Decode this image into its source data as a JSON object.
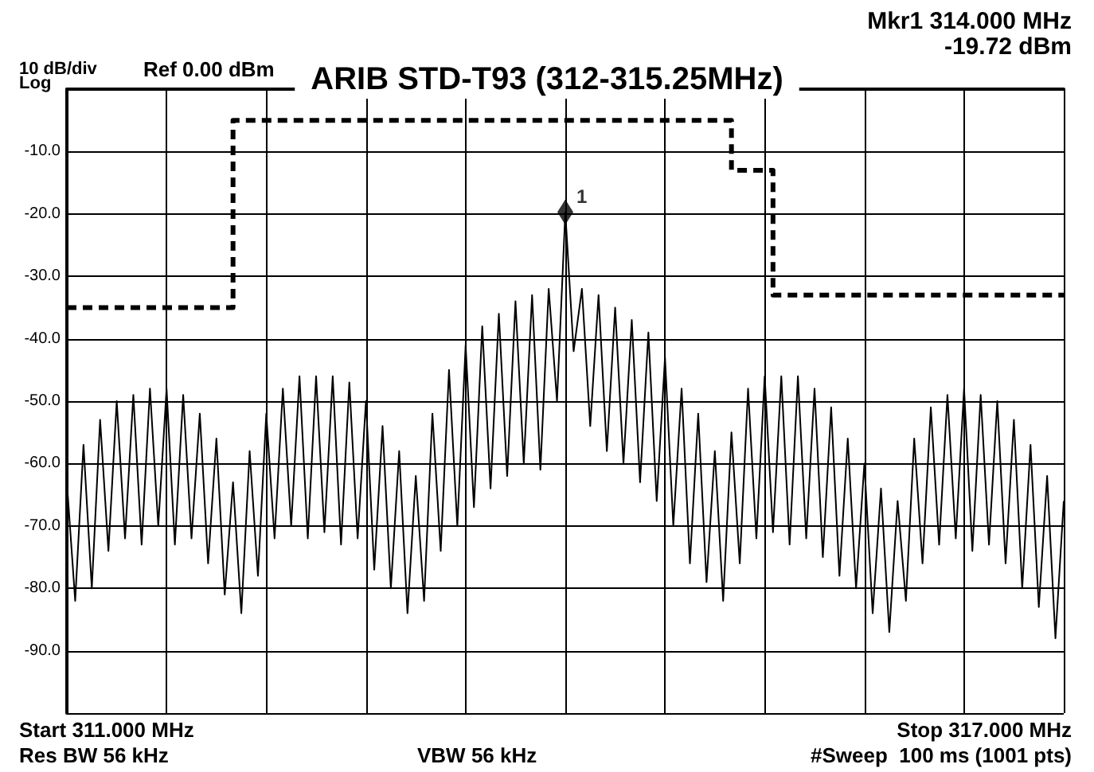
{
  "chart_data": {
    "type": "line",
    "title": "ARIB STD-T93 (312-315.25MHz)",
    "annotations": [
      "10 dB/div",
      "Log",
      "Ref 0.00 dBm",
      "Mkr1 314.000 MHz",
      "-19.72 dBm",
      "Start 311.000 MHz",
      "Stop 317.000 MHz",
      "Res BW 56 kHz",
      "VBW 56 kHz",
      "#Sweep  100 ms (1001 pts)"
    ],
    "categories": [
      null,
      null,
      null,
      null,
      null,
      null,
      null,
      null,
      null,
      null,
      null,
      null,
      null,
      null,
      null,
      null,
      null,
      null,
      null,
      null,
      null,
      null,
      null,
      null,
      null,
      null,
      null,
      null,
      null,
      null,
      null,
      null,
      null,
      null,
      null,
      null,
      null,
      null,
      null,
      null,
      null,
      null,
      null,
      null,
      null,
      null,
      null,
      null,
      null,
      null,
      null,
      null,
      null,
      null,
      null,
      null,
      null,
      null,
      null,
      null,
      null,
      null,
      null,
      null,
      null,
      null,
      null,
      null,
      null,
      null,
      null,
      null,
      null,
      null,
      null,
      null,
      null,
      null,
      null,
      null,
      null,
      null,
      null,
      null,
      null,
      null,
      null,
      null,
      null,
      null,
      null,
      null,
      null,
      null,
      null,
      null,
      null,
      null,
      null,
      null,
      null,
      null,
      null,
      null,
      null,
      null,
      null,
      null,
      null,
      null,
      null,
      null,
      null,
      null,
      null,
      null,
      null,
      null,
      null,
      null,
      null
    ],
    "ylim": [
      -100,
      0
    ],
    "yticks": [
      {
        "value": 0,
        "label": null
      },
      {
        "value": -10,
        "label": "-10.0"
      },
      {
        "value": -20,
        "label": "-20.0"
      },
      {
        "value": -30,
        "label": "-30.0"
      },
      {
        "value": -40,
        "label": "-40.0"
      },
      {
        "value": -50,
        "label": "-50.0"
      },
      {
        "value": -60,
        "label": "-60.0"
      },
      {
        "value": -70,
        "label": "-70.0"
      },
      {
        "value": -80,
        "label": "-80.0"
      },
      {
        "value": -90,
        "label": "-90.0"
      },
      {
        "value": -100,
        "label": null
      }
    ],
    "tick_labels": "y",
    "grid": true,
    "legend": false,
    "series": [
      {
        "color": "#000000",
        "line_style": "solid",
        "marker": "none",
        "values": [
          -63,
          -82,
          -57,
          -80,
          -53,
          -74,
          -50,
          -72,
          -49,
          -73,
          -48,
          -70,
          -48,
          -73,
          -49,
          -72,
          -52,
          -76,
          -56,
          -81,
          -63,
          -84,
          -58,
          -78,
          -52,
          -72,
          -48,
          -70,
          -46,
          -72,
          -46,
          -71,
          -46,
          -73,
          -47,
          -72,
          -50,
          -77,
          -54,
          -80,
          -58,
          -84,
          -62,
          -82,
          -52,
          -74,
          -45,
          -70,
          -41,
          -67,
          -38,
          -64,
          -36,
          -62,
          -34,
          -60,
          -33,
          -61,
          -32,
          -50,
          -19.72,
          -42,
          -32,
          -54,
          -33,
          -58,
          -35,
          -60,
          -37,
          -63,
          -39,
          -66,
          -43,
          -70,
          -48,
          -76,
          -52,
          -79,
          -58,
          -82,
          -55,
          -76,
          -48,
          -72,
          -46,
          -71,
          -46,
          -73,
          -46,
          -72,
          -48,
          -75,
          -51,
          -78,
          -56,
          -80,
          -60,
          -84,
          -64,
          -87,
          -66,
          -82,
          -56,
          -76,
          -51,
          -73,
          -49,
          -72,
          -48,
          -74,
          -49,
          -73,
          -50,
          -76,
          -53,
          -80,
          -57,
          -83,
          -62,
          -88,
          -66
        ]
      },
      {
        "type": "step",
        "color": "#000000",
        "line_style": "dashed",
        "marker": "none",
        "values": [
          -35,
          -35,
          -35,
          -35,
          -35,
          -35,
          -35,
          -35,
          -35,
          -35,
          -35,
          -35,
          -35,
          -35,
          -35,
          -35,
          -35,
          -35,
          -35,
          -35,
          -5,
          -5,
          -5,
          -5,
          -5,
          -5,
          -5,
          -5,
          -5,
          -5,
          -5,
          -5,
          -5,
          -5,
          -5,
          -5,
          -5,
          -5,
          -5,
          -5,
          -5,
          -5,
          -5,
          -5,
          -5,
          -5,
          -5,
          -5,
          -5,
          -5,
          -5,
          -5,
          -5,
          -5,
          -5,
          -5,
          -5,
          -5,
          -5,
          -5,
          -5,
          -5,
          -5,
          -5,
          -5,
          -5,
          -5,
          -5,
          -5,
          -5,
          -5,
          -5,
          -5,
          -5,
          -5,
          -5,
          -5,
          -5,
          -5,
          -5,
          -13,
          -13,
          -13,
          -13,
          -13,
          -33,
          -33,
          -33,
          -33,
          -33,
          -33,
          -33,
          -33,
          -33,
          -33,
          -33,
          -33,
          -33,
          -33,
          -33,
          -33,
          -33,
          -33,
          -33,
          -33,
          -33,
          -33,
          -33,
          -33,
          -33,
          -33,
          -33,
          -33,
          -33,
          -33,
          -33,
          -33,
          -33,
          -33,
          -33,
          -33
        ]
      },
      {
        "type": "scatter",
        "name": "1",
        "color": "#000000",
        "marker": "diamond",
        "values": [
          null,
          null,
          null,
          null,
          null,
          null,
          null,
          null,
          null,
          null,
          null,
          null,
          null,
          null,
          null,
          null,
          null,
          null,
          null,
          null,
          null,
          null,
          null,
          null,
          null,
          null,
          null,
          null,
          null,
          null,
          null,
          null,
          null,
          null,
          null,
          null,
          null,
          null,
          null,
          null,
          null,
          null,
          null,
          null,
          null,
          null,
          null,
          null,
          null,
          null,
          null,
          null,
          null,
          null,
          null,
          null,
          null,
          null,
          null,
          null,
          -19.72,
          null,
          null,
          null,
          null,
          null,
          null,
          null,
          null,
          null,
          null,
          null,
          null,
          null,
          null,
          null,
          null,
          null,
          null,
          null,
          null,
          null,
          null,
          null,
          null,
          null,
          null,
          null,
          null,
          null,
          null,
          null,
          null,
          null,
          null,
          null,
          null,
          null,
          null,
          null,
          null,
          null,
          null,
          null,
          null,
          null,
          null,
          null,
          null,
          null,
          null,
          null,
          null,
          null,
          null,
          null,
          null,
          null,
          null,
          null,
          null
        ]
      }
    ]
  }
}
